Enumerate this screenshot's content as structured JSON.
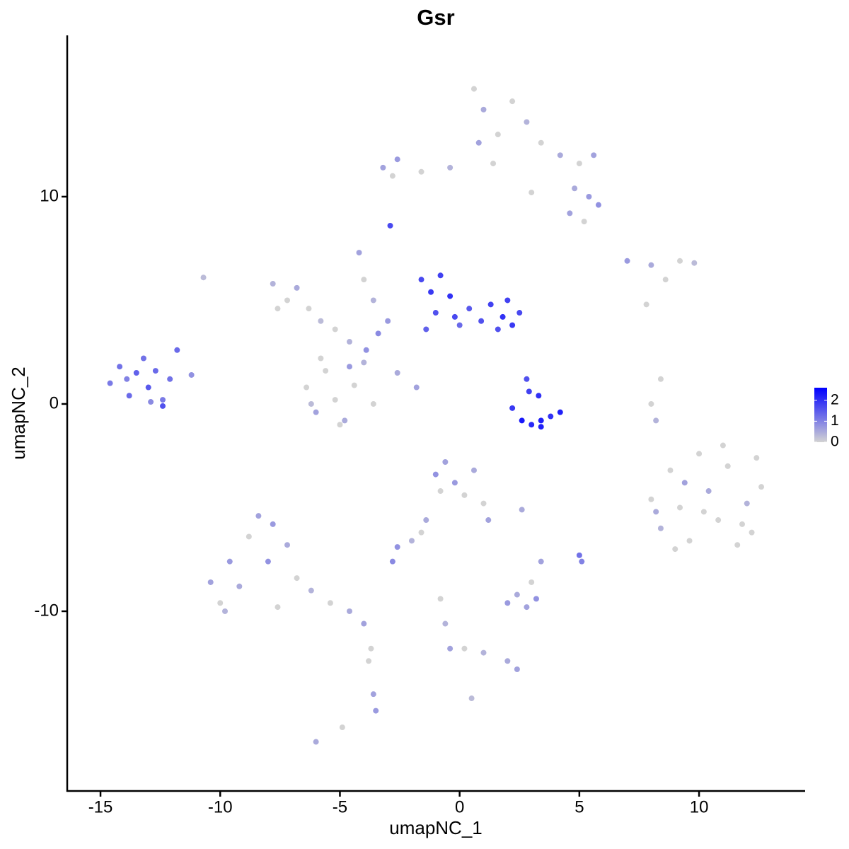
{
  "chart_data": {
    "type": "scatter",
    "title": "Gsr",
    "xlabel": "umapNC_1",
    "ylabel": "umapNC_2",
    "xlim": [
      -16.39,
      14.43
    ],
    "ylim": [
      -18.67,
      17.78
    ],
    "xticks": [
      -15,
      -10,
      -5,
      0,
      5,
      10
    ],
    "yticks": [
      -10,
      0,
      10
    ],
    "color_low": "#d3d3d3",
    "color_high": "#0000ff",
    "colorbar_lim": [
      0,
      2.6
    ],
    "colorbar_ticks": [
      0,
      1,
      2
    ],
    "x": [
      -14.6,
      -14.2,
      -13.8,
      -13.5,
      -13.2,
      -13.0,
      -12.7,
      -12.4,
      -12.1,
      -11.8,
      -12.4,
      -13.9,
      -12.9,
      -11.2,
      -6.4,
      -6.0,
      -5.6,
      -5.2,
      -4.8,
      -4.4,
      -4.0,
      -3.6,
      -5.8,
      -4.6,
      -5.0,
      -6.2,
      -7.8,
      -7.2,
      -6.8,
      -6.3,
      -5.8,
      -5.2,
      -4.6,
      -3.9,
      -3.4,
      -3.0,
      -7.6,
      -4.2,
      -4.0,
      -3.6,
      -2.6,
      -1.8,
      -1.6,
      -1.2,
      -0.8,
      -0.4,
      -1.0,
      -0.2,
      0.4,
      0.9,
      1.3,
      1.8,
      2.2,
      2.5,
      1.6,
      -1.4,
      0.0,
      2.0,
      2.2,
      2.6,
      3.0,
      3.4,
      3.8,
      4.2,
      2.9,
      3.3,
      2.8,
      3.4,
      8.0,
      8.4,
      8.8,
      9.2,
      9.6,
      10.0,
      10.4,
      10.8,
      11.2,
      11.6,
      12.0,
      12.4,
      12.6,
      9.0,
      11.0,
      10.2,
      9.4,
      11.8,
      8.2,
      12.2,
      0.6,
      1.0,
      1.6,
      0.8,
      2.2,
      2.8,
      3.4,
      4.2,
      5.0,
      5.6,
      1.4,
      -0.4,
      -1.6,
      -2.6,
      -3.2,
      -2.8,
      4.8,
      5.4,
      5.8,
      4.6,
      5.2,
      3.0,
      -2.9,
      -10.7,
      7.0,
      8.0,
      9.2,
      9.8,
      8.6,
      7.8,
      8.4,
      8.0,
      8.2,
      -10.4,
      -10.0,
      -9.6,
      -9.2,
      -8.8,
      -8.4,
      -8.0,
      -7.6,
      -7.2,
      -6.8,
      -6.2,
      -5.4,
      -4.6,
      -4.0,
      -7.8,
      -9.8,
      -3.8,
      -3.6,
      -3.5,
      -3.7,
      -6.0,
      -4.9,
      -1.0,
      -0.6,
      -0.2,
      0.2,
      0.6,
      1.0,
      1.2,
      -0.8,
      -1.4,
      -2.0,
      -2.6,
      -2.8,
      -1.6,
      2.6,
      3.4,
      5.0,
      5.1,
      2.0,
      2.4,
      2.8,
      3.0,
      3.2,
      -0.8,
      -0.6,
      -0.4,
      0.2,
      1.0,
      2.0,
      2.4,
      0.5
    ],
    "y": [
      1.0,
      1.8,
      0.4,
      1.5,
      2.2,
      0.8,
      1.6,
      0.2,
      1.2,
      2.6,
      -0.1,
      1.2,
      0.1,
      1.4,
      0.8,
      -0.4,
      1.6,
      0.2,
      -0.8,
      0.9,
      2.0,
      0.0,
      2.2,
      1.8,
      -1.0,
      0.0,
      5.8,
      5.0,
      5.6,
      4.6,
      4.0,
      3.6,
      3.0,
      2.6,
      3.4,
      4.0,
      4.6,
      7.3,
      6.0,
      5.0,
      1.5,
      0.8,
      6.0,
      5.4,
      6.2,
      5.2,
      4.4,
      4.2,
      4.6,
      4.0,
      4.8,
      4.2,
      3.8,
      4.4,
      3.6,
      3.6,
      3.8,
      5.0,
      -0.2,
      -0.8,
      -1.0,
      -0.8,
      -0.6,
      -0.4,
      0.6,
      0.4,
      1.2,
      -1.1,
      -4.6,
      -6.0,
      -3.2,
      -5.0,
      -6.6,
      -2.4,
      -4.2,
      -5.6,
      -3.0,
      -6.8,
      -4.8,
      -2.6,
      -4.0,
      -7.0,
      -2.0,
      -5.2,
      -3.8,
      -5.8,
      -5.2,
      -6.2,
      15.2,
      14.2,
      13.0,
      12.6,
      14.6,
      13.6,
      12.6,
      12.0,
      11.6,
      12.0,
      11.6,
      11.4,
      11.2,
      11.8,
      11.4,
      11.0,
      10.4,
      10.0,
      9.6,
      9.2,
      8.8,
      10.2,
      8.6,
      6.1,
      6.9,
      6.7,
      6.9,
      6.8,
      6.0,
      4.8,
      1.2,
      0.0,
      -0.8,
      -8.6,
      -9.6,
      -7.6,
      -8.8,
      -6.4,
      -5.4,
      -7.6,
      -9.8,
      -6.8,
      -8.4,
      -9.0,
      -9.6,
      -10.0,
      -10.6,
      -5.8,
      -10.0,
      -12.4,
      -14.0,
      -14.8,
      -11.8,
      -16.3,
      -15.6,
      -3.4,
      -2.8,
      -3.8,
      -4.4,
      -3.2,
      -4.8,
      -5.6,
      -4.2,
      -5.6,
      -6.6,
      -6.9,
      -7.6,
      -6.2,
      -5.1,
      -7.6,
      -7.3,
      -7.6,
      -9.6,
      -9.2,
      -9.8,
      -8.6,
      -9.4,
      -9.4,
      -10.6,
      -11.8,
      -11.8,
      -12.0,
      -12.4,
      -12.8,
      -14.2
    ],
    "values": [
      1.1,
      1.2,
      1.3,
      1.4,
      1.2,
      1.5,
      1.3,
      1.1,
      1.2,
      1.3,
      1.6,
      1.0,
      0.9,
      0.8,
      0,
      0.6,
      0,
      0,
      0.5,
      0,
      0.4,
      0,
      0,
      0.7,
      0,
      0.3,
      0.4,
      0,
      0.5,
      0,
      0.3,
      0,
      0.4,
      0.8,
      0.9,
      0.7,
      0,
      0.6,
      0,
      0.4,
      0.5,
      0.6,
      1.7,
      1.9,
      1.8,
      2.0,
      1.6,
      1.7,
      1.5,
      1.6,
      1.8,
      2.0,
      1.9,
      1.7,
      1.6,
      1.4,
      1.3,
      1.8,
      1.9,
      2.3,
      2.1,
      2.2,
      2.0,
      2.2,
      1.8,
      2.0,
      1.6,
      2.2,
      0,
      0.4,
      0,
      0,
      0,
      0,
      0.5,
      0,
      0,
      0,
      0.4,
      0,
      0,
      0,
      0,
      0,
      0.6,
      0,
      0.5,
      0,
      0,
      0.5,
      0,
      0.6,
      0,
      0.4,
      0,
      0.5,
      0,
      0.6,
      0,
      0.4,
      0,
      0.7,
      0.6,
      0,
      0.5,
      0.7,
      0.8,
      0.6,
      0,
      0,
      1.7,
      0.3,
      0.7,
      0.5,
      0,
      0.3,
      0,
      0,
      0,
      0,
      0.4,
      0.6,
      0,
      0.7,
      0.5,
      0,
      0.6,
      0.8,
      0,
      0.5,
      0,
      0.4,
      0,
      0.5,
      0.6,
      0.7,
      0.4,
      0,
      0.6,
      0.7,
      0,
      0.5,
      0,
      0.8,
      0.6,
      0.7,
      0,
      0.5,
      0,
      0.6,
      0,
      0.5,
      0.4,
      0.8,
      0.9,
      0,
      0.5,
      0.6,
      1.2,
      1.0,
      0.7,
      0.5,
      0.6,
      0,
      0.8,
      0,
      0.4,
      0.6,
      0,
      0.4,
      0.5,
      0.6,
      0.3
    ]
  }
}
